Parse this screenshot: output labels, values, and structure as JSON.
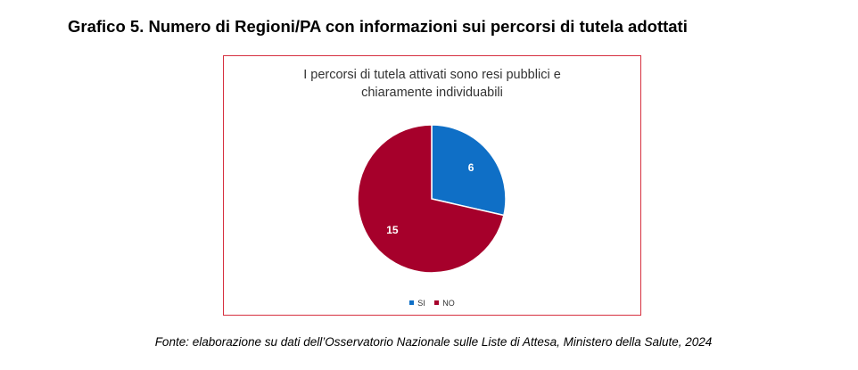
{
  "heading": "Grafico 5. Numero di Regioni/PA con informazioni sui percorsi di tutela adottati",
  "source": "Fonte: elaborazione su dati dell’Osservatorio Nazionale sulle Liste di Attesa, Ministero della Salute, 2024",
  "chart_data": {
    "type": "pie",
    "title_lines": [
      "I percorsi di tutela attivati sono resi pubblici e",
      "chiaramente individuabili"
    ],
    "categories": [
      "SI",
      "NO"
    ],
    "values": [
      6,
      15
    ],
    "colors": [
      "#0f6fc6",
      "#a6002b"
    ],
    "legend_position": "bottom",
    "data_label_color": "#ffffff"
  }
}
